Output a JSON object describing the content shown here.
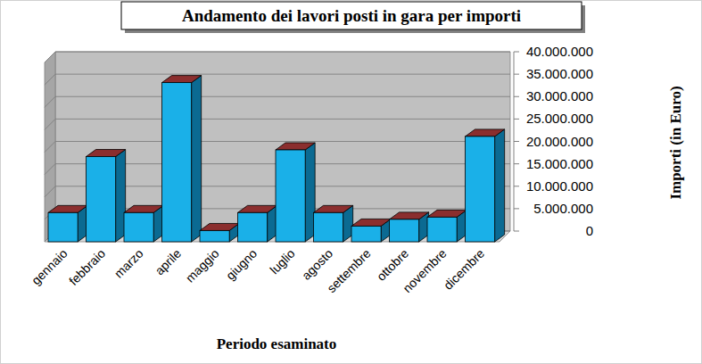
{
  "chart_data": {
    "type": "bar",
    "title": "Andamento dei lavori posti in gara per importi",
    "x_label": "Periodo esaminato",
    "y_label": "Importi (in Euro)",
    "categories": [
      "gennaio",
      "febbraio",
      "marzo",
      "aprile",
      "maggio",
      "giugno",
      "luglio",
      "agosto",
      "settembre",
      "ottobre",
      "novembre",
      "dicembre"
    ],
    "values": [
      6500000,
      19000000,
      6500000,
      35500000,
      2500000,
      6500000,
      20500000,
      6500000,
      3500000,
      5000000,
      5500000,
      23500000
    ],
    "color": "#1ab0e8",
    "ylim": [
      0,
      40000000
    ],
    "yticks": [
      0,
      {
        "value": 5000000,
        "label": "5.000.000"
      },
      {
        "value": 10000000,
        "label": "10.000.000"
      },
      {
        "value": 15000000,
        "label": "15.000.000"
      },
      {
        "value": 20000000,
        "label": "20.000.000"
      },
      {
        "value": 25000000,
        "label": "25.000.000"
      },
      {
        "value": 30000000,
        "label": "30.000.000"
      },
      {
        "value": 35000000,
        "label": "35.000.000"
      },
      {
        "value": 40000000,
        "label": "40.000.000"
      }
    ],
    "grid": true
  }
}
